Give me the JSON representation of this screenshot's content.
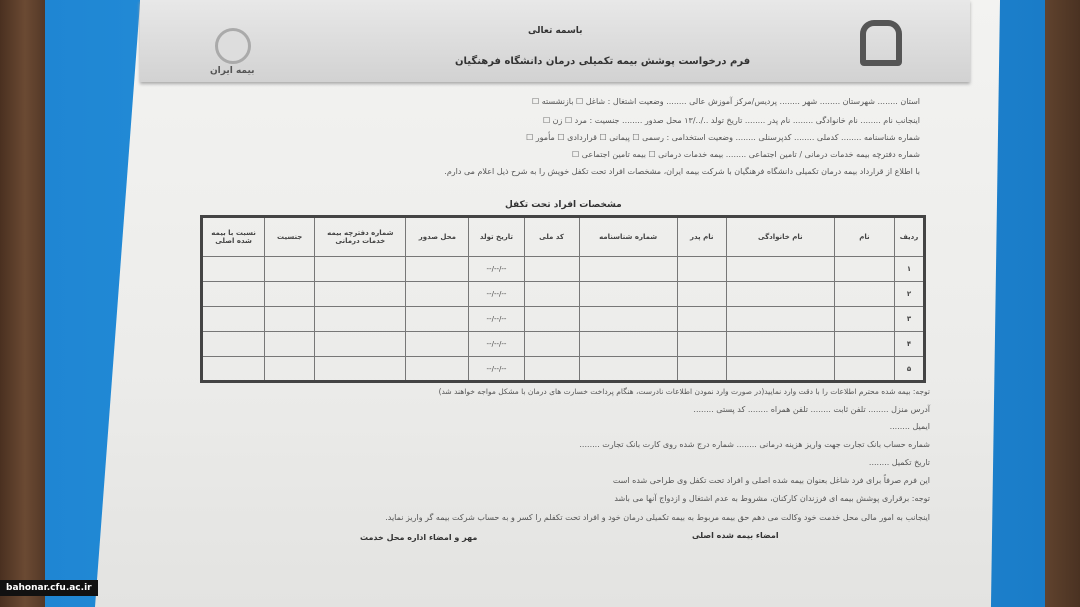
{
  "header": {
    "bismillah": "باسمه تعالی",
    "title": "فرم درخواست پوشش بیمه تکمیلی درمان دانشگاه فرهنگیان",
    "left_logo": "بیمه ایران",
    "right_logo": "دانشگاه فرهنگیان"
  },
  "fields": {
    "line1": "استان ........ شهرستان ........ شهر ........ پردیس/مرکز آموزش عالی ........ وضعیت اشتغال : شاغل ☐ بازنشسته ☐",
    "line2": "اینجانب نام ........ نام خانوادگی ........ نام پدر ........ تاریخ تولد ../../۱۳ محل صدور ........ جنسیت : مرد ☐ زن ☐",
    "line3": "شماره شناسنامه ........ کدملی ........ کدپرسنلی ........ وضعیت استخدامی : رسمی ☐ پیمانی ☐ قراردادی ☐ مأمور ☐",
    "line4": "شماره دفترچه بیمه خدمات درمانی / تامین اجتماعی ........ بیمه خدمات درمانی ☐ بیمه تامین اجتماعی ☐",
    "line5": "با اطلاع از قرارداد بیمه درمان تکمیلی دانشگاه فرهنگیان با شرکت بیمه ایران، مشخصات افراد تحت تکفل خویش را به شرح ذیل اعلام می دارم."
  },
  "table": {
    "title": "مشخصات افراد تحت تکفل",
    "columns": [
      "ردیف",
      "نام",
      "نام خانوادگی",
      "نام پدر",
      "شماره شناسنامه",
      "کد ملی",
      "تاریخ تولد",
      "محل صدور",
      "شماره دفترچه بیمه خدمات درمانی",
      "جنسیت",
      "نسبت با بیمه شده اصلی"
    ],
    "rows": [
      "۱",
      "۲",
      "۳",
      "۴",
      "۵"
    ],
    "date_placeholder": "--/--/--"
  },
  "footer": {
    "note": "توجه: بیمه شده محترم اطلاعات را با دقت وارد نمایید(در صورت وارد نمودن اطلاعات نادرست، هنگام پرداخت خسارت های درمان با مشکل مواجه خواهند شد)",
    "address": "آدرس منزل ........ تلفن ثابت ........ تلفن همراه ........ کد پستی ........",
    "email": "ایمیل ........",
    "account": "شماره حساب بانک تجارت جهت واریز هزینه درمانی ........ شماره درج شده روی کارت بانک تجارت ........",
    "date": "تاریخ تکمیل ........",
    "p1": "این فرم صرفاً برای فرد شاغل بعنوان بیمه شده اصلی و افراد تحت تکفل وی طراحی شده است",
    "p2": "توجه: برقراری پوشش بیمه ای فرزندان کارکنان، مشروط به عدم اشتغال و ازدواج آنها می باشد",
    "p3": "اینجانب به امور مالی محل خدمت خود وکالت می دهم حق بیمه مربوط به بیمه تکمیلی درمان خود و افراد تحت تکفلم را کسر و به حساب شرکت بیمه گر واریز نماید.",
    "sig_insured": "امضاء بیمه شده اصلی",
    "sig_office": "مهر و امضاء اداره محل خدمت"
  },
  "watermark": "bahonar.cfu.ac.ir"
}
